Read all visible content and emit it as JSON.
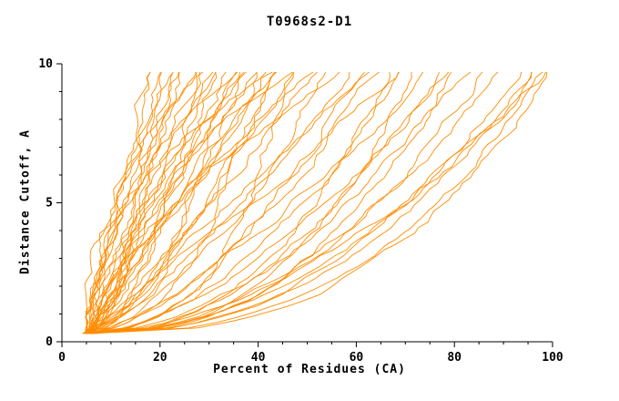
{
  "chart_data": {
    "type": "line",
    "title": "T0968s2-D1",
    "xlabel": "Percent of Residues (CA)",
    "ylabel": "Distance Cutoff, A",
    "xlim": [
      0,
      100
    ],
    "ylim": [
      0,
      10
    ],
    "x_ticks_major": [
      0,
      20,
      40,
      60,
      80,
      100
    ],
    "x_tick_minor_step": 5,
    "y_ticks_major": [
      0,
      5,
      10
    ],
    "y_tick_minor_step": 1,
    "grid": false,
    "legend": "none",
    "line_color": "#FF8C00",
    "axis_color": "#000000",
    "background_color": "#FFFFFF",
    "y_start": 0.3,
    "y_end": 9.7,
    "curve_model": "x(y) = s + (e - s) * ((y - y_start)/(y_end - y_start))^p ; each curve is [s, e, p] = [percent at cutoff 0.3, percent at cutoff 9.7, shape exponent], estimated from the dense overlapping family of ~100 monotonic model-accuracy curves",
    "curves": [
      [
        4.6,
        18,
        1.0
      ],
      [
        5.0,
        19,
        0.6
      ],
      [
        5.4,
        20,
        1.4
      ],
      [
        5.8,
        21,
        0.8
      ],
      [
        6.2,
        22,
        1.8
      ],
      [
        4.6,
        23,
        0.5
      ],
      [
        5.0,
        24,
        1.2
      ],
      [
        5.4,
        25,
        0.7
      ],
      [
        5.8,
        26,
        2.0
      ],
      [
        6.2,
        27,
        0.9
      ],
      [
        4.6,
        28,
        0.45
      ],
      [
        5.0,
        29,
        1.6
      ],
      [
        5.4,
        30,
        1.1
      ],
      [
        5.8,
        31,
        0.65
      ],
      [
        6.2,
        32,
        1.3
      ],
      [
        4.6,
        33,
        0.75
      ],
      [
        5.0,
        34,
        1.9
      ],
      [
        5.4,
        35,
        0.55
      ],
      [
        5.8,
        36,
        1.05
      ],
      [
        6.2,
        37,
        0.85
      ],
      [
        4.6,
        38,
        1.5
      ],
      [
        5.0,
        39,
        0.6
      ],
      [
        5.4,
        40,
        1.25
      ],
      [
        5.8,
        41,
        0.95
      ],
      [
        6.2,
        42,
        2.2
      ],
      [
        4.6,
        43,
        0.5
      ],
      [
        5.0,
        44,
        1.15
      ],
      [
        5.4,
        45,
        0.7
      ],
      [
        5.8,
        46,
        1.7
      ],
      [
        6.2,
        47,
        0.8
      ],
      [
        4.6,
        48,
        0.4
      ],
      [
        5.0,
        50,
        1.35
      ],
      [
        5.4,
        52,
        0.9
      ],
      [
        5.8,
        54,
        0.6
      ],
      [
        6.2,
        56,
        1.45
      ],
      [
        4.6,
        58,
        0.75
      ],
      [
        5.0,
        60,
        0.5
      ],
      [
        5.4,
        62,
        1.0
      ],
      [
        5.8,
        64,
        0.65
      ],
      [
        6.2,
        66,
        0.42
      ],
      [
        4.6,
        68,
        0.9
      ],
      [
        5.0,
        70,
        0.55
      ],
      [
        5.4,
        72,
        0.38
      ],
      [
        5.8,
        74,
        0.7
      ],
      [
        6.2,
        76,
        0.48
      ],
      [
        4.6,
        78,
        0.6
      ],
      [
        5.0,
        80,
        0.4
      ],
      [
        5.4,
        83,
        0.52
      ],
      [
        5.8,
        86,
        0.45
      ],
      [
        6.2,
        89,
        0.5
      ],
      [
        4.6,
        92,
        0.42
      ],
      [
        5.0,
        95,
        0.47
      ],
      [
        5.4,
        97,
        0.44
      ],
      [
        5.8,
        99,
        0.4
      ],
      [
        6.2,
        100,
        0.38
      ],
      [
        4.6,
        100,
        0.55
      ]
    ]
  }
}
